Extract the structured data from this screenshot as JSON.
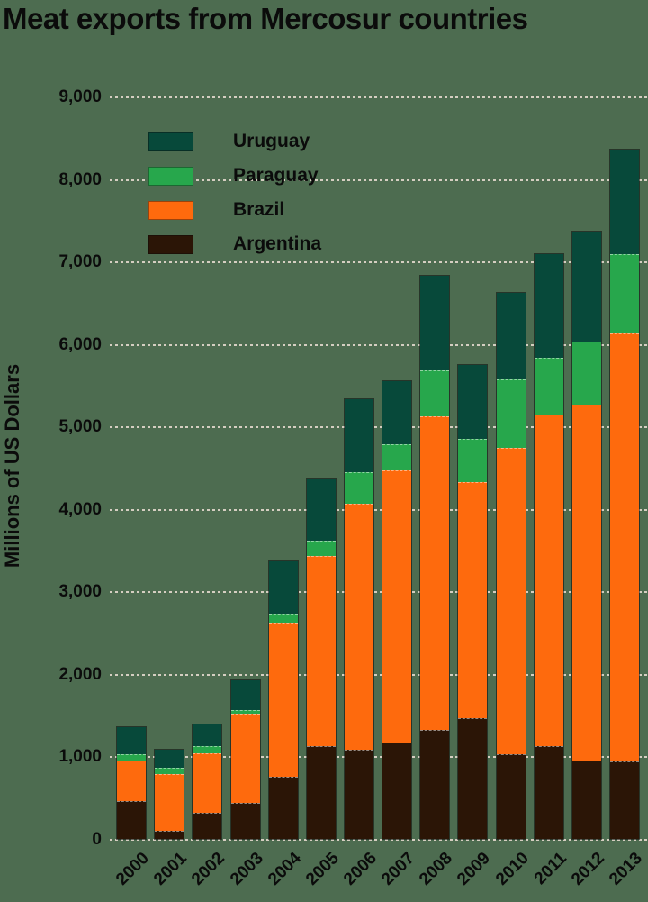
{
  "title": "Meat exports from Mercosur countries",
  "y_axis": {
    "title": "Millions of US Dollars",
    "tick_labels": [
      "0",
      "1,000",
      "2,000",
      "3,000",
      "4,000",
      "5,000",
      "6,000",
      "7,000",
      "8,000",
      "9,000"
    ]
  },
  "x_axis": {
    "tick_labels": [
      "2000",
      "2001",
      "2002",
      "2003",
      "2004",
      "2005",
      "2006",
      "2007",
      "2008",
      "2009",
      "2010",
      "2011",
      "2012",
      "2013"
    ]
  },
  "legend": {
    "entries": [
      {
        "label": "Uruguay",
        "color": "#07493a"
      },
      {
        "label": "Paraguay",
        "color": "#27a74c"
      },
      {
        "label": "Brazil",
        "color": "#fe6a0d"
      },
      {
        "label": "Argentina",
        "color": "#2b1506"
      }
    ]
  },
  "colors": {
    "background": "#4d6c50",
    "gridline": "#d5cec1",
    "text": "#0b0b0b",
    "uruguay": "#07493a",
    "paraguay": "#27a74c",
    "brazil": "#fe6a0d",
    "argentina": "#2b1506"
  },
  "chart_data": {
    "type": "bar",
    "stacked": true,
    "title": "Meat exports from Mercosur countries",
    "ylabel": "Millions of US Dollars",
    "ylim": [
      0,
      9000
    ],
    "ytick_step": 1000,
    "grid": "horizontal-dashed",
    "legend_position": "top-left",
    "legend_order_top_to_bottom": [
      "Uruguay",
      "Paraguay",
      "Brazil",
      "Argentina"
    ],
    "categories": [
      2000,
      2001,
      2002,
      2003,
      2004,
      2005,
      2006,
      2007,
      2008,
      2009,
      2010,
      2011,
      2012,
      2013
    ],
    "series": [
      {
        "name": "Argentina",
        "color": "#2b1506",
        "values": [
          460,
          100,
          320,
          440,
          755,
          1125,
          1080,
          1170,
          1320,
          1465,
          1025,
          1125,
          950,
          940
        ]
      },
      {
        "name": "Brazil",
        "color": "#fe6a0d",
        "values": [
          490,
          690,
          720,
          1075,
          1865,
          2305,
          2980,
          3295,
          3800,
          2860,
          3710,
          4015,
          4310,
          5185
        ]
      },
      {
        "name": "Paraguay",
        "color": "#27a74c",
        "values": [
          75,
          75,
          85,
          50,
          110,
          185,
          390,
          315,
          555,
          525,
          840,
          690,
          765,
          960
        ]
      },
      {
        "name": "Uruguay",
        "color": "#07493a",
        "values": [
          330,
          220,
          260,
          360,
          630,
          740,
          885,
          765,
          1155,
          900,
          1040,
          1255,
          1335,
          1275
        ]
      }
    ],
    "totals": [
      1355,
      1085,
      1385,
      1925,
      3360,
      4355,
      5335,
      5545,
      6830,
      5750,
      6615,
      7085,
      7360,
      8360
    ]
  }
}
